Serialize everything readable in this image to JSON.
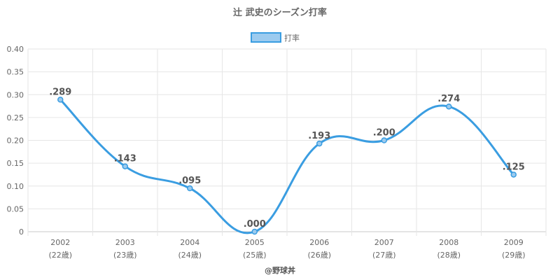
{
  "chart_data": {
    "type": "line",
    "title": "辻 武史のシーズン打率",
    "categories": [
      "2002",
      "2003",
      "2004",
      "2005",
      "2006",
      "2007",
      "2008",
      "2009"
    ],
    "sublabels": [
      "(22歳)",
      "(23歳)",
      "(24歳)",
      "(25歳)",
      "(26歳)",
      "(27歳)",
      "(28歳)",
      "(29歳)"
    ],
    "series": [
      {
        "name": "打率",
        "values": [
          0.289,
          0.143,
          0.095,
          0.0,
          0.193,
          0.2,
          0.274,
          0.125
        ],
        "labels": [
          ".289",
          ".143",
          ".095",
          ".000",
          ".193",
          ".200",
          ".274",
          ".125"
        ],
        "color": "#3a9de1",
        "fill": "#9ccbef"
      }
    ],
    "ylim": [
      0,
      0.4
    ],
    "yticks": [
      0,
      0.05,
      0.1,
      0.15,
      0.2,
      0.25,
      0.3,
      0.35,
      0.4
    ],
    "ytick_labels": [
      "0",
      "0.05",
      "0.10",
      "0.15",
      "0.20",
      "0.25",
      "0.30",
      "0.35",
      "0.40"
    ],
    "grid": true,
    "legend_position": "top-center",
    "watermark": "@野球丼"
  }
}
